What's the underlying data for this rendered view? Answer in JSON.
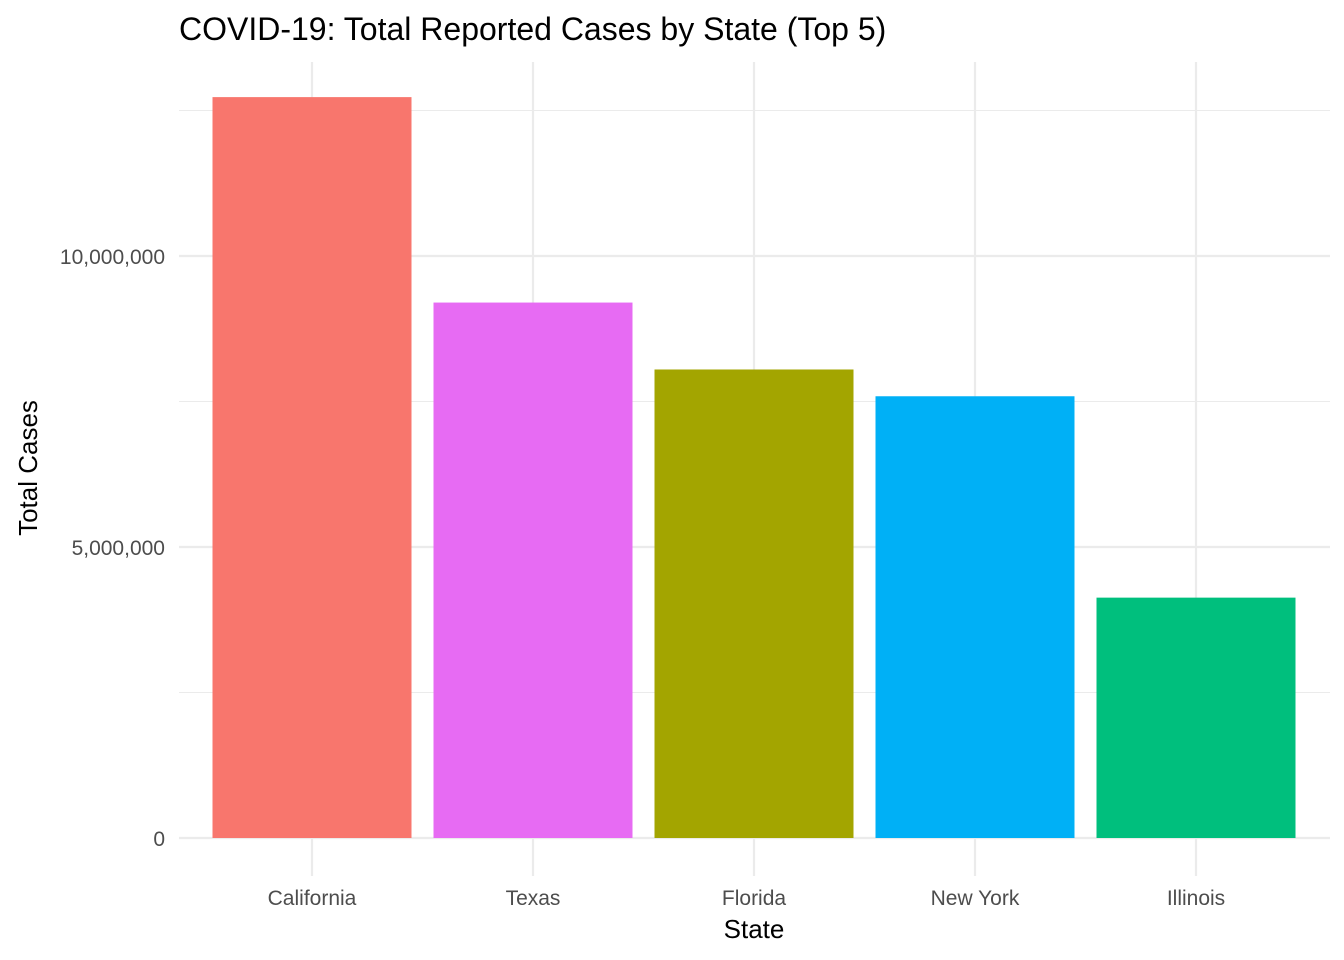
{
  "chart_data": {
    "type": "bar",
    "title": "COVID-19: Total Reported Cases by State (Top 5)",
    "xlabel": "State",
    "ylabel": "Total Cases",
    "categories": [
      "California",
      "Texas",
      "Florida",
      "New York",
      "Illinois"
    ],
    "values": [
      12730000,
      9200000,
      8050000,
      7590000,
      4130000
    ],
    "colors": [
      "#F8766D",
      "#E76BF3",
      "#A3A500",
      "#00B0F6",
      "#00BF7D"
    ],
    "y_ticks": [
      0,
      5000000,
      10000000
    ],
    "y_tick_labels": [
      "0",
      "5,000,000",
      "10,000,000"
    ],
    "ylim": [
      0,
      13360000
    ],
    "grid": true,
    "legend": "none"
  }
}
